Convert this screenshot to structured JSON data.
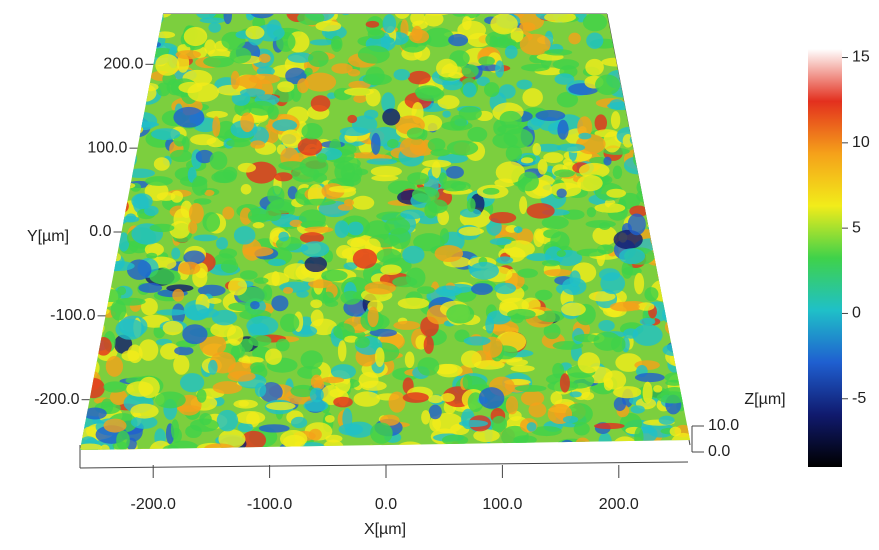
{
  "chart_data": {
    "type": "surface",
    "x_label": "X[µm]",
    "y_label": "Y[µm]",
    "z_label": "Z[µm]",
    "xlim": [
      -250,
      250
    ],
    "xticks": [
      {
        "value": -200,
        "label": "-200.0"
      },
      {
        "value": -100,
        "label": "-100.0"
      },
      {
        "value": 0,
        "label": "0.0"
      },
      {
        "value": 100,
        "label": "100.0"
      },
      {
        "value": 200,
        "label": "200.0"
      }
    ],
    "ylim": [
      -260,
      260
    ],
    "yticks": [
      {
        "value": -200,
        "label": "-200.0"
      },
      {
        "value": -100,
        "label": "-100.0"
      },
      {
        "value": 0,
        "label": "0.0"
      },
      {
        "value": 100,
        "label": "100.0"
      },
      {
        "value": 200,
        "label": "200.0"
      }
    ],
    "zlim": [
      0,
      10
    ],
    "zticks": [
      {
        "value": 0,
        "label": "0.0"
      },
      {
        "value": 10,
        "label": "10.0"
      }
    ],
    "clim": [
      -9,
      15.5
    ],
    "cticks": [
      -5,
      0,
      5,
      10,
      15
    ],
    "colormap": [
      "#000000",
      "#101a6e",
      "#1f5fd0",
      "#1fc0c8",
      "#3fd24a",
      "#f2ec1a",
      "#f5a11a",
      "#e3301e",
      "#ffffff"
    ]
  }
}
